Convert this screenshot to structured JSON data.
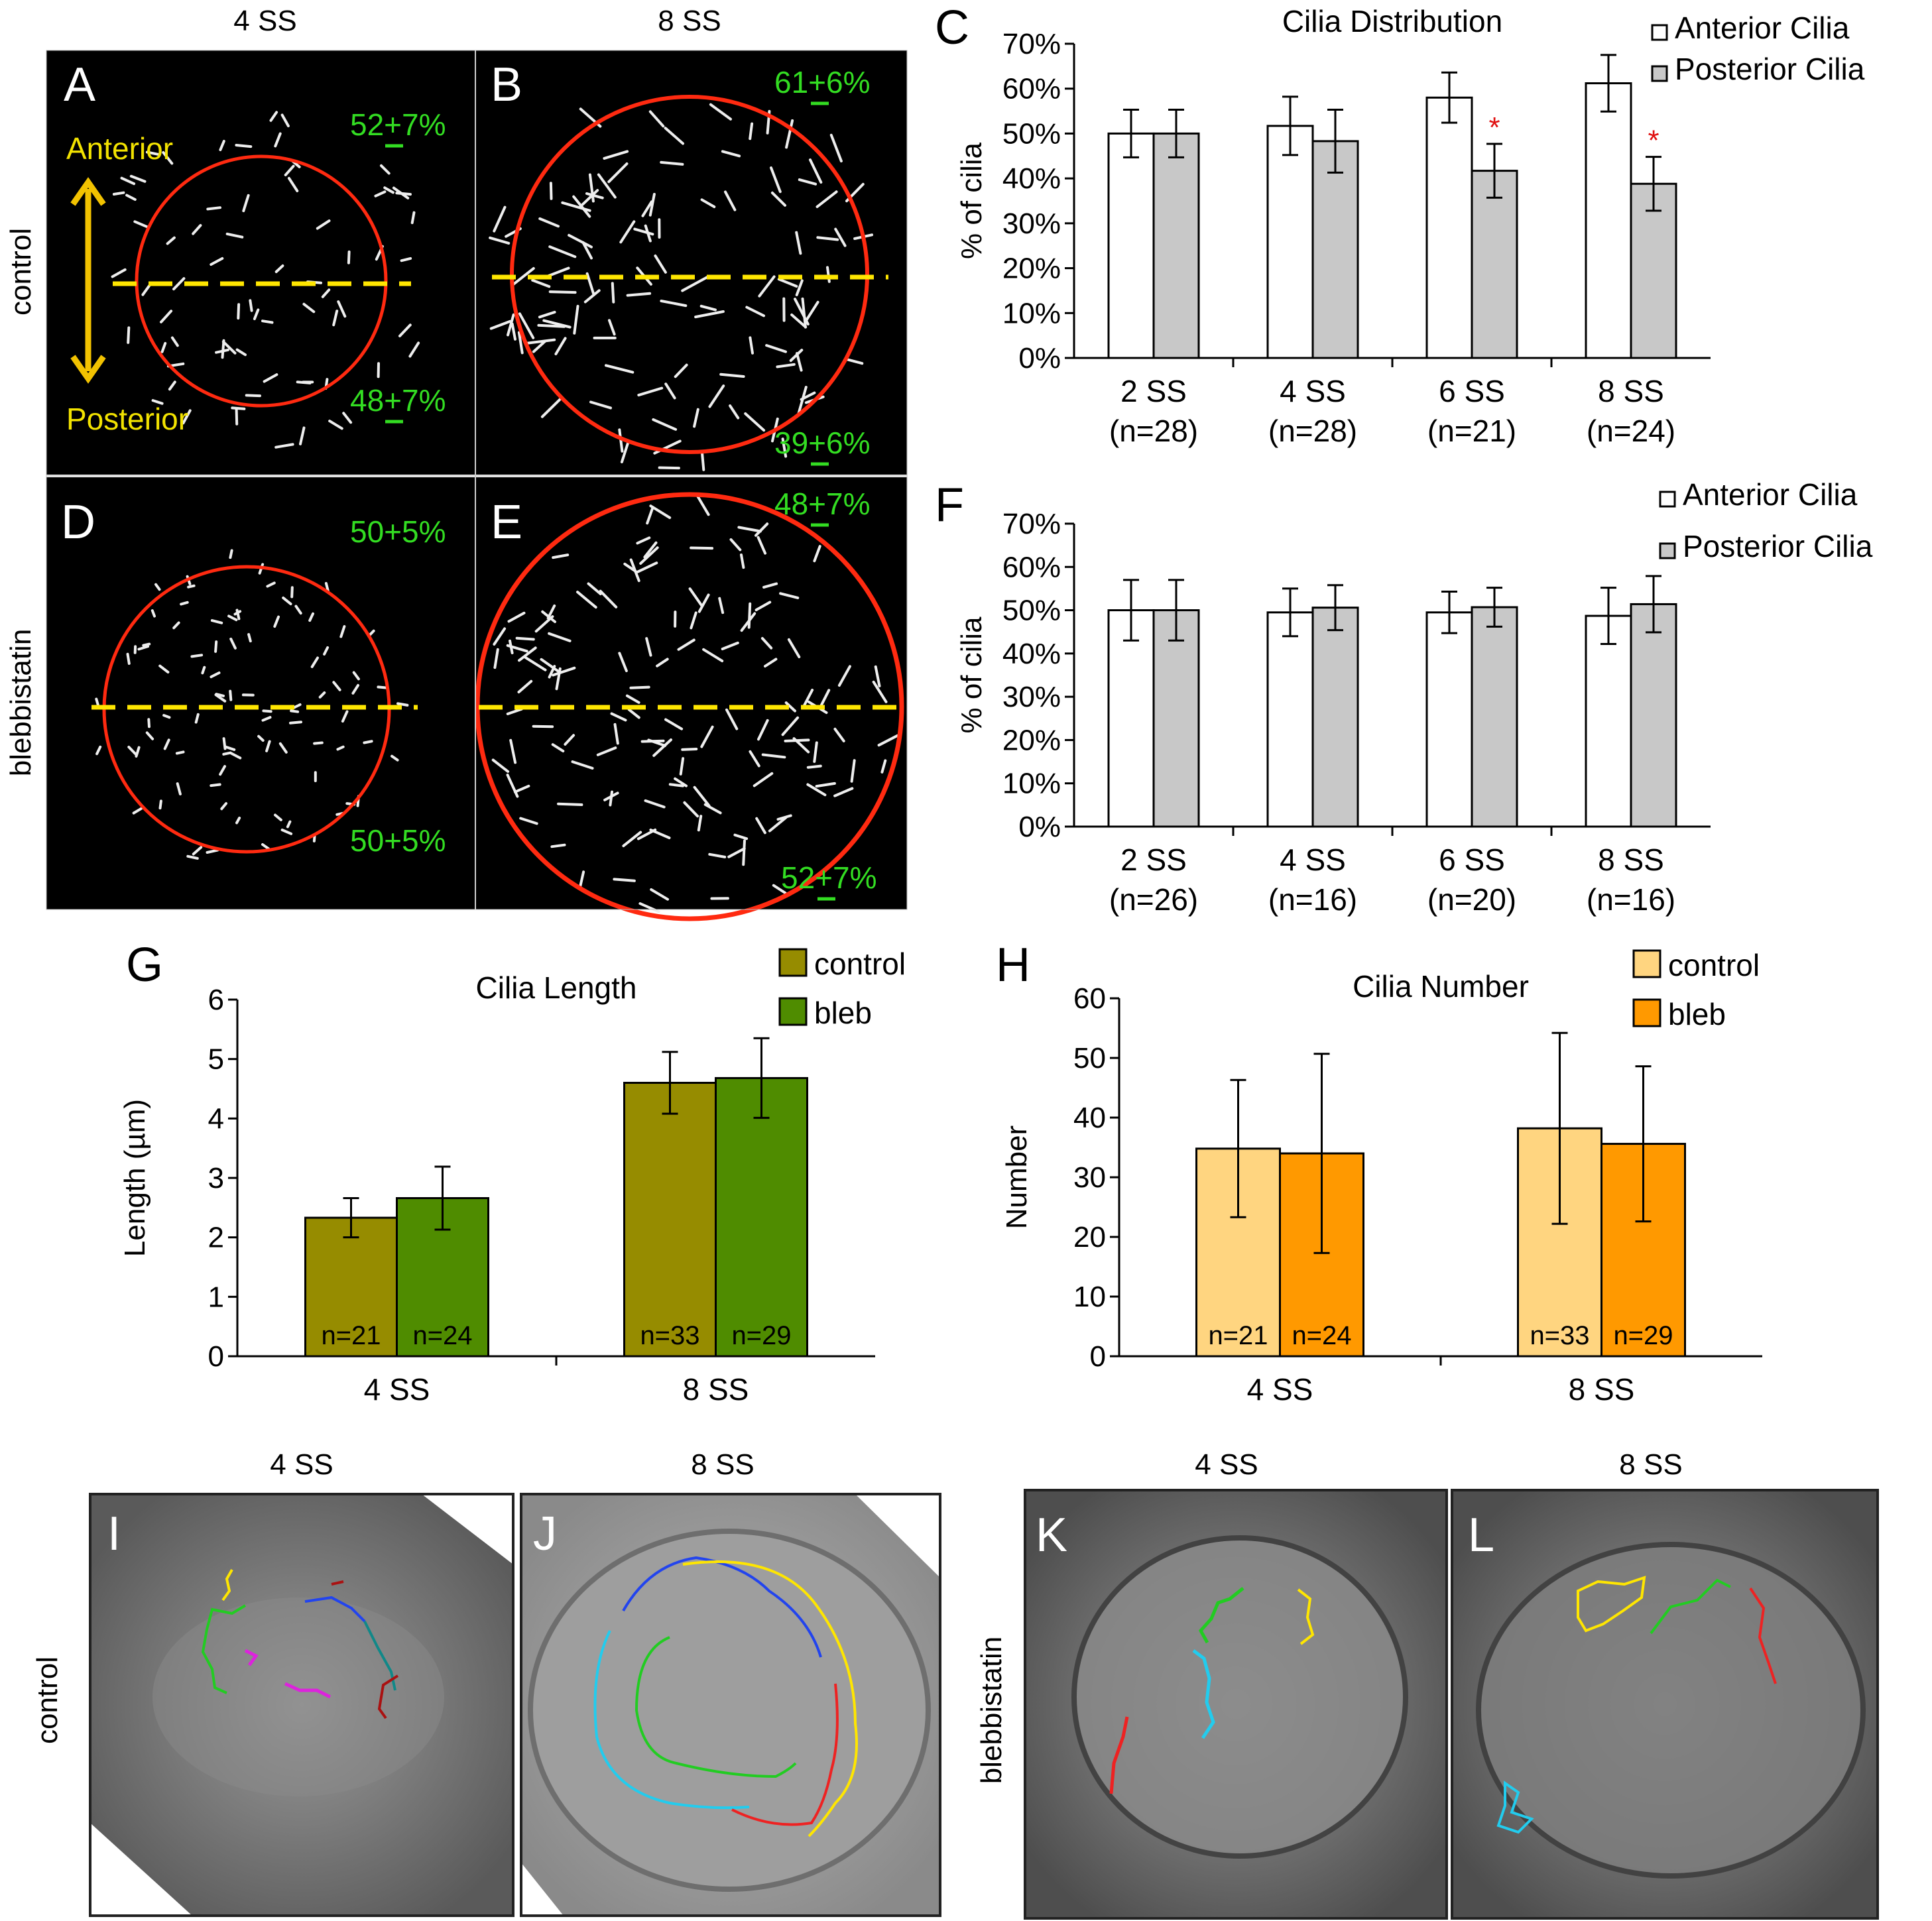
{
  "panel_letters": {
    "A": "A",
    "B": "B",
    "C": "C",
    "D": "D",
    "E": "E",
    "F": "F",
    "G": "G",
    "H": "H",
    "I": "I",
    "J": "J",
    "K": "K",
    "L": "L"
  },
  "micro": {
    "col_4ss": "4 SS",
    "col_8ss": "8 SS",
    "row_control": "control",
    "row_bleb": "blebbistatin",
    "anterior": "Anterior",
    "posterior": "Posterior",
    "A_top": "52+7%",
    "A_bottom": "48+7%",
    "B_top": "61+6%",
    "B_bottom": "39+6%",
    "D_top": "50+5%",
    "D_bottom": "50+5%",
    "E_top": "48+7%",
    "E_bottom": "52+7%"
  },
  "tracks": {
    "col_4ss": "4 SS",
    "col_8ss": "8 SS",
    "col_4ss_b": "4 SS",
    "col_8ss_b": "8 SS",
    "row_control": "control",
    "row_bleb": "blebbistatin"
  },
  "colors": {
    "anterior_bar": "#ffffff",
    "posterior_bar": "#c8c8c8",
    "len_control": "#968c00",
    "len_bleb": "#4f8c00",
    "num_control": "#ffd580",
    "num_bleb": "#ff9900",
    "significance": "#e01010",
    "circle": "#ff2a10",
    "dash": "#ffe600",
    "percent_text": "#33dd22",
    "axis_word": "#f2e200"
  },
  "chart_data": [
    {
      "id": "C",
      "type": "bar",
      "title": "Cilia Distribution",
      "ylabel": "% of cilia",
      "ylim": [
        0,
        70
      ],
      "yticks": [
        "0%",
        "10%",
        "20%",
        "30%",
        "40%",
        "50%",
        "60%",
        "70%"
      ],
      "categories": [
        "2 SS",
        "4 SS",
        "6 SS",
        "8 SS"
      ],
      "category_n": [
        "(n=28)",
        "(n=28)",
        "(n=21)",
        "(n=24)"
      ],
      "series": [
        {
          "name": "Anterior Cilia",
          "values": [
            50,
            51.7,
            58,
            61.2
          ],
          "errors": [
            5.3,
            6.5,
            5.6,
            6.3
          ]
        },
        {
          "name": "Posterior Cilia",
          "values": [
            50,
            48.3,
            41.7,
            38.8
          ],
          "errors": [
            5.3,
            7,
            6,
            6
          ]
        }
      ],
      "significance": [
        false,
        false,
        true,
        true
      ],
      "significance_mark": "*",
      "legend": "top-right"
    },
    {
      "id": "F",
      "type": "bar",
      "title": "",
      "ylabel": "% of cilia",
      "ylim": [
        0,
        70
      ],
      "yticks": [
        "0%",
        "10%",
        "20%",
        "30%",
        "40%",
        "50%",
        "60%",
        "70%"
      ],
      "categories": [
        "2 SS",
        "4 SS",
        "6 SS",
        "8 SS"
      ],
      "category_n": [
        "(n=26)",
        "(n=16)",
        "(n=20)",
        "(n=16)"
      ],
      "series": [
        {
          "name": "Anterior Cilia",
          "values": [
            50,
            49.5,
            49.5,
            48.7
          ],
          "errors": [
            7,
            5.5,
            4.8,
            6.5
          ]
        },
        {
          "name": "Posterior Cilia",
          "values": [
            50,
            50.6,
            50.7,
            51.4
          ],
          "errors": [
            7,
            5.2,
            4.5,
            6.5
          ]
        }
      ],
      "legend": "top-right"
    },
    {
      "id": "G",
      "type": "bar",
      "title": "Cilia Length",
      "ylabel": "Length (µm)",
      "ylim": [
        0,
        6
      ],
      "yticks": [
        "0",
        "1",
        "2",
        "3",
        "4",
        "5",
        "6"
      ],
      "categories": [
        "4 SS",
        "8 SS"
      ],
      "series": [
        {
          "name": "control",
          "values": [
            2.33,
            4.6
          ],
          "errors": [
            0.33,
            0.52
          ],
          "n_labels": [
            "n=21",
            "n=33"
          ]
        },
        {
          "name": "bleb",
          "values": [
            2.66,
            4.68
          ],
          "errors": [
            0.53,
            0.67
          ],
          "n_labels": [
            "n=24",
            "n=29"
          ]
        }
      ],
      "legend": "top-right"
    },
    {
      "id": "H",
      "type": "bar",
      "title": "Cilia Number",
      "ylabel": "Number",
      "ylim": [
        0,
        60
      ],
      "yticks": [
        "0",
        "10",
        "20",
        "30",
        "40",
        "50",
        "60"
      ],
      "categories": [
        "4 SS",
        "8 SS"
      ],
      "series": [
        {
          "name": "control",
          "values": [
            34.8,
            38.2
          ],
          "errors": [
            11.5,
            16
          ],
          "n_labels": [
            "n=21",
            "n=33"
          ]
        },
        {
          "name": "bleb",
          "values": [
            34,
            35.6
          ],
          "errors": [
            16.7,
            13
          ],
          "n_labels": [
            "n=24",
            "n=29"
          ]
        }
      ],
      "legend": "top-right"
    }
  ]
}
